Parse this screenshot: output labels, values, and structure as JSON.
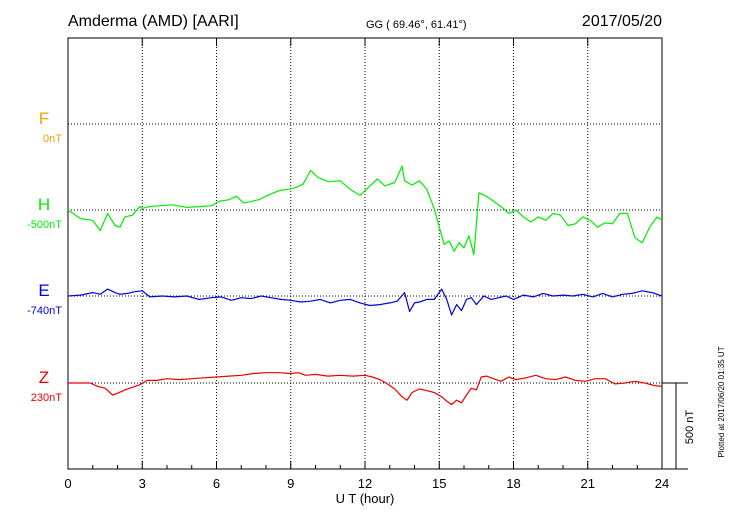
{
  "chart_data": {
    "type": "line",
    "title": "Amderma (AMD)  [AARI]",
    "coords": "GG ( 69.46°,  61.41°)",
    "date": "2017/05/20",
    "xlabel": "U T (hour)",
    "xlim": [
      0,
      24
    ],
    "x_ticks": [
      "0",
      "3",
      "6",
      "9",
      "12",
      "15",
      "18",
      "21",
      "24"
    ],
    "grid": true,
    "plotted_note": "Plotted at 2017/06/20 01:35 UT",
    "scale_bar_label": "500 nT",
    "colors": {
      "F": "#f0a000",
      "H": "#00ee00",
      "E": "#0000dd",
      "Z": "#ee0000"
    },
    "series": [
      {
        "name": "F",
        "base_label": "0nT",
        "x": [],
        "y": []
      },
      {
        "name": "H",
        "base_label": "-500nT",
        "x": [
          0,
          0.5,
          1.0,
          1.3,
          1.6,
          1.9,
          2.1,
          2.3,
          2.6,
          2.9,
          3.0,
          3.3,
          3.7,
          4.2,
          4.8,
          5.3,
          5.8,
          6.1,
          6.5,
          6.8,
          7.1,
          7.4,
          7.7,
          8.0,
          8.3,
          8.6,
          8.9,
          9.2,
          9.5,
          9.8,
          10.1,
          10.5,
          11.0,
          11.4,
          11.8,
          12.2,
          12.5,
          12.8,
          13.2,
          13.5,
          13.6,
          13.9,
          14.2,
          14.5,
          14.8,
          15.0,
          15.2,
          15.4,
          15.6,
          15.8,
          16.0,
          16.2,
          16.4,
          16.6,
          16.9,
          17.2,
          17.5,
          17.8,
          18.1,
          18.4,
          18.7,
          19.0,
          19.3,
          19.6,
          19.9,
          20.2,
          20.5,
          20.8,
          21.1,
          21.4,
          21.7,
          22.0,
          22.3,
          22.6,
          22.9,
          23.2,
          23.5,
          23.8,
          24.0
        ],
        "y": [
          -500,
          -550,
          -560,
          -620,
          -520,
          -590,
          -600,
          -540,
          -530,
          -480,
          -490,
          -480,
          -475,
          -470,
          -485,
          -480,
          -475,
          -450,
          -440,
          -420,
          -460,
          -450,
          -440,
          -420,
          -400,
          -385,
          -380,
          -370,
          -350,
          -270,
          -310,
          -335,
          -330,
          -380,
          -415,
          -360,
          -320,
          -360,
          -340,
          -245,
          -330,
          -355,
          -330,
          -380,
          -495,
          -600,
          -700,
          -680,
          -740,
          -690,
          -720,
          -650,
          -760,
          -400,
          -420,
          -450,
          -480,
          -520,
          -500,
          -540,
          -570,
          -540,
          -560,
          -520,
          -530,
          -590,
          -580,
          -540,
          -560,
          -600,
          -575,
          -580,
          -520,
          -520,
          -660,
          -690,
          -600,
          -540,
          -560
        ]
      },
      {
        "name": "E",
        "base_label": "-740nT",
        "x": [
          0,
          0.5,
          1.0,
          1.3,
          1.6,
          1.9,
          2.1,
          2.4,
          2.7,
          3.0,
          3.3,
          3.8,
          4.3,
          4.8,
          5.3,
          5.8,
          6.2,
          6.6,
          7.0,
          7.4,
          7.8,
          8.2,
          8.6,
          9.0,
          9.4,
          9.8,
          10.2,
          10.6,
          11.0,
          11.4,
          11.8,
          12.2,
          12.6,
          13.0,
          13.3,
          13.6,
          13.8,
          14.0,
          14.2,
          14.5,
          14.8,
          15.1,
          15.3,
          15.5,
          15.7,
          15.9,
          16.1,
          16.3,
          16.5,
          16.8,
          17.1,
          17.4,
          17.7,
          18.0,
          18.4,
          18.8,
          19.2,
          19.6,
          20.0,
          20.4,
          20.8,
          21.2,
          21.6,
          22.0,
          22.4,
          22.8,
          23.2,
          23.6,
          24.0
        ],
        "y": [
          -740,
          -735,
          -720,
          -730,
          -700,
          -720,
          -730,
          -725,
          -715,
          -710,
          -745,
          -740,
          -745,
          -740,
          -760,
          -750,
          -745,
          -765,
          -750,
          -755,
          -740,
          -750,
          -760,
          -765,
          -775,
          -770,
          -760,
          -780,
          -765,
          -760,
          -780,
          -795,
          -790,
          -780,
          -770,
          -720,
          -830,
          -780,
          -775,
          -760,
          -760,
          -700,
          -760,
          -850,
          -790,
          -825,
          -760,
          -750,
          -790,
          -740,
          -760,
          -750,
          -740,
          -760,
          -735,
          -745,
          -725,
          -740,
          -735,
          -740,
          -730,
          -745,
          -725,
          -745,
          -730,
          -725,
          -710,
          -720,
          -740
        ]
      },
      {
        "name": "Z",
        "base_label": "230nT",
        "x": [
          0,
          0.5,
          0.9,
          1.2,
          1.5,
          1.8,
          2.0,
          2.3,
          2.6,
          2.9,
          3.2,
          3.6,
          4.0,
          4.5,
          5.0,
          5.5,
          6.0,
          6.5,
          7.0,
          7.5,
          8.0,
          8.5,
          9.0,
          9.3,
          9.6,
          10.0,
          10.5,
          11.0,
          11.5,
          12.0,
          12.3,
          12.6,
          12.9,
          13.2,
          13.5,
          13.7,
          13.9,
          14.2,
          14.5,
          14.8,
          15.1,
          15.3,
          15.5,
          15.7,
          15.9,
          16.1,
          16.3,
          16.5,
          16.7,
          16.9,
          17.2,
          17.5,
          17.8,
          18.1,
          18.5,
          18.9,
          19.3,
          19.7,
          20.1,
          20.5,
          20.9,
          21.3,
          21.7,
          22.1,
          22.5,
          22.9,
          23.3,
          23.7,
          24.0
        ],
        "y": [
          230,
          230,
          230,
          210,
          200,
          160,
          170,
          190,
          205,
          220,
          245,
          245,
          255,
          250,
          255,
          260,
          265,
          270,
          275,
          285,
          290,
          290,
          285,
          290,
          275,
          280,
          270,
          275,
          270,
          275,
          265,
          250,
          225,
          195,
          150,
          130,
          175,
          195,
          185,
          175,
          150,
          125,
          105,
          130,
          115,
          160,
          200,
          190,
          265,
          270,
          255,
          240,
          265,
          250,
          260,
          275,
          255,
          250,
          265,
          245,
          240,
          255,
          255,
          225,
          230,
          240,
          230,
          215,
          210
        ]
      }
    ]
  }
}
